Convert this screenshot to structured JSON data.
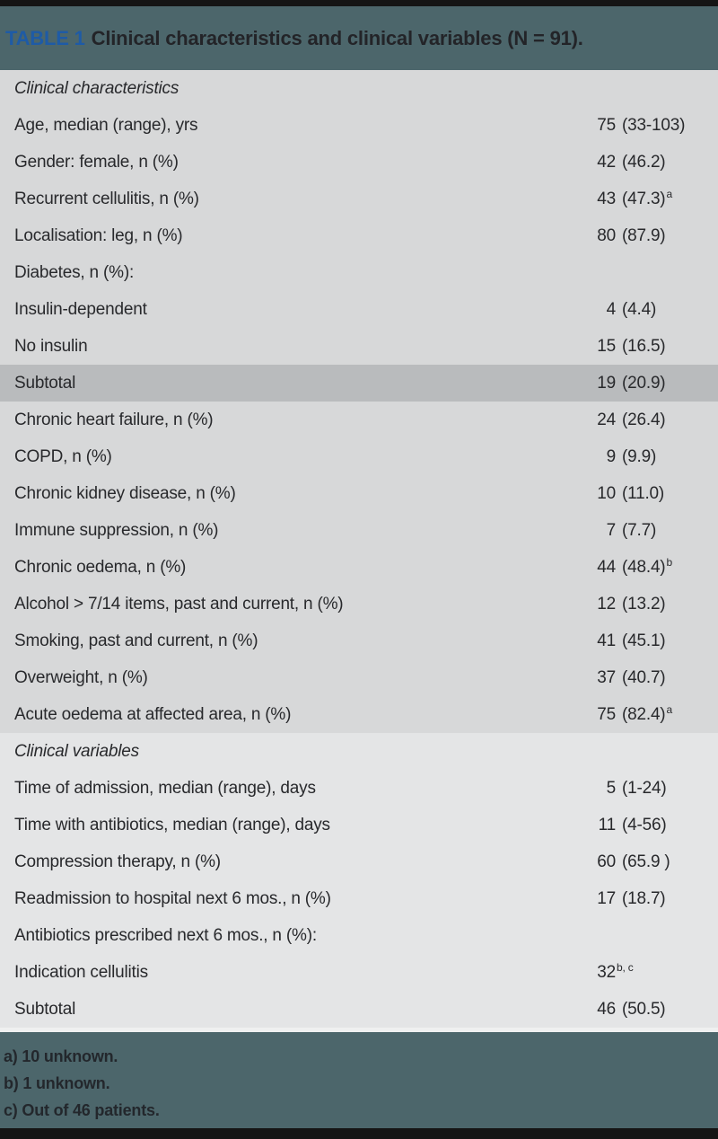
{
  "header": {
    "table_label": "TABLE 1",
    "title": "Clinical characteristics and clinical variables (N = 91)."
  },
  "colors": {
    "header_band": "#4c666b",
    "table_label_blue": "#1e5ba6",
    "row_upper_bg": "#d7d8d9",
    "row_lower_bg": "#e4e5e6",
    "subtotal_bg": "#b9bbbd",
    "bar_black": "#151515"
  },
  "table": {
    "rows": [
      {
        "label": "Clinical characteristics",
        "num": "",
        "paren": "",
        "sup": "",
        "type": "section",
        "section": 1
      },
      {
        "label": "Age, median (range), yrs",
        "num": "75",
        "paren": "(33-103)",
        "sup": "",
        "type": "data",
        "section": 1
      },
      {
        "label": "Gender: female, n (%)",
        "num": "42",
        "paren": "(46.2)",
        "sup": "",
        "type": "data",
        "section": 1
      },
      {
        "label": "Recurrent cellulitis, n (%)",
        "num": "43",
        "paren": "(47.3)",
        "sup": "a",
        "type": "data",
        "section": 1
      },
      {
        "label": "Localisation: leg, n (%)",
        "num": "80",
        "paren": "(87.9)",
        "sup": "",
        "type": "data",
        "section": 1
      },
      {
        "label": "Diabetes, n (%):",
        "num": "",
        "paren": "",
        "sup": "",
        "type": "data",
        "section": 1
      },
      {
        "label": "Insulin-dependent",
        "num": "4",
        "paren": "(4.4)",
        "sup": "",
        "type": "data",
        "section": 1
      },
      {
        "label": "No insulin",
        "num": "15",
        "paren": "(16.5)",
        "sup": "",
        "type": "data",
        "section": 1
      },
      {
        "label": "Subtotal",
        "num": "19",
        "paren": "(20.9)",
        "sup": "",
        "type": "subtotal",
        "section": 1
      },
      {
        "label": "Chronic heart failure, n (%)",
        "num": "24",
        "paren": "(26.4)",
        "sup": "",
        "type": "data",
        "section": 1
      },
      {
        "label": "COPD, n (%)",
        "num": "9",
        "paren": "(9.9)",
        "sup": "",
        "type": "data",
        "section": 1
      },
      {
        "label": "Chronic kidney disease, n (%)",
        "num": "10",
        "paren": "(11.0)",
        "sup": "",
        "type": "data",
        "section": 1
      },
      {
        "label": "Immune suppression, n (%)",
        "num": "7",
        "paren": "(7.7)",
        "sup": "",
        "type": "data",
        "section": 1
      },
      {
        "label": "Chronic oedema, n (%)",
        "num": "44",
        "paren": "(48.4)",
        "sup": "b",
        "type": "data",
        "section": 1
      },
      {
        "label": "Alcohol > 7/14 items, past and current, n (%)",
        "num": "12",
        "paren": "(13.2)",
        "sup": "",
        "type": "data",
        "section": 1
      },
      {
        "label": "Smoking, past and current, n (%)",
        "num": "41",
        "paren": "(45.1)",
        "sup": "",
        "type": "data",
        "section": 1
      },
      {
        "label": "Overweight, n (%)",
        "num": "37",
        "paren": "(40.7)",
        "sup": "",
        "type": "data",
        "section": 1
      },
      {
        "label": "Acute oedema at affected area, n (%)",
        "num": "75",
        "paren": "(82.4)",
        "sup": "a",
        "type": "data",
        "section": 1
      },
      {
        "label": "Clinical variables",
        "num": "",
        "paren": "",
        "sup": "",
        "type": "section",
        "section": 2
      },
      {
        "label": "Time of admission, median (range), days",
        "num": "5",
        "paren": "(1-24)",
        "sup": "",
        "type": "data",
        "section": 2
      },
      {
        "label": "Time with antibiotics, median (range), days",
        "num": "11",
        "paren": "(4-56)",
        "sup": "",
        "type": "data",
        "section": 2
      },
      {
        "label": "Compression therapy, n (%)",
        "num": "60",
        "paren": "(65.9 )",
        "sup": "",
        "type": "data",
        "section": 2
      },
      {
        "label": "Readmission to hospital next 6 mos., n (%)",
        "num": "17",
        "paren": "(18.7)",
        "sup": "",
        "type": "data",
        "section": 2
      },
      {
        "label": "Antibiotics prescribed next 6 mos., n (%):",
        "num": "",
        "paren": "",
        "sup": "",
        "type": "data",
        "section": 2
      },
      {
        "label": "Indication cellulitis",
        "num": "32",
        "paren": "",
        "sup": "b, c",
        "type": "data",
        "section": 2
      },
      {
        "label": "Subtotal",
        "num": "46",
        "paren": "(50.5)",
        "sup": "",
        "type": "data",
        "section": 2
      }
    ]
  },
  "footnotes": [
    "a) 10 unknown.",
    "b) 1 unknown.",
    "c) Out of 46 patients."
  ]
}
